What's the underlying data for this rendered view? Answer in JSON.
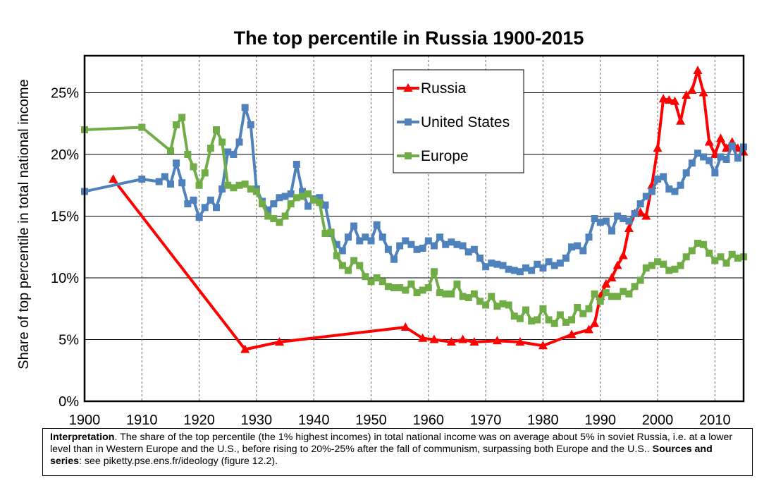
{
  "chart_data": {
    "type": "line",
    "title": "The top percentile in Russia 1900-2015",
    "ylabel": "Share of top percentile in total national income",
    "xlabel": "",
    "xlim": [
      1900,
      2015
    ],
    "ylim": [
      0,
      0.28
    ],
    "grid": true,
    "legend_position": "top-center",
    "x_ticks": [
      "1900",
      "1910",
      "1920",
      "1930",
      "1940",
      "1950",
      "1960",
      "1970",
      "1980",
      "1990",
      "2000",
      "2010"
    ],
    "y_ticks": [
      "0%",
      "5%",
      "10%",
      "15%",
      "20%",
      "25%"
    ],
    "series": [
      {
        "name": "Russia",
        "color": "#ff0000",
        "marker": "triangle",
        "points": [
          [
            1905,
            0.18
          ],
          [
            1928,
            0.042
          ],
          [
            1934,
            0.048
          ],
          [
            1956,
            0.06
          ],
          [
            1959,
            0.051
          ],
          [
            1961,
            0.05
          ],
          [
            1964,
            0.048
          ],
          [
            1966,
            0.05
          ],
          [
            1968,
            0.048
          ],
          [
            1972,
            0.049
          ],
          [
            1976,
            0.048
          ],
          [
            1980,
            0.045
          ],
          [
            1985,
            0.054
          ],
          [
            1988,
            0.058
          ],
          [
            1989,
            0.063
          ],
          [
            1990,
            0.085
          ],
          [
            1991,
            0.095
          ],
          [
            1992,
            0.1
          ],
          [
            1993,
            0.11
          ],
          [
            1994,
            0.118
          ],
          [
            1995,
            0.14
          ],
          [
            1996,
            0.152
          ],
          [
            1997,
            0.153
          ],
          [
            1998,
            0.15
          ],
          [
            1999,
            0.175
          ],
          [
            2000,
            0.205
          ],
          [
            2001,
            0.245
          ],
          [
            2002,
            0.244
          ],
          [
            2003,
            0.243
          ],
          [
            2004,
            0.227
          ],
          [
            2005,
            0.248
          ],
          [
            2006,
            0.252
          ],
          [
            2007,
            0.268
          ],
          [
            2008,
            0.25
          ],
          [
            2009,
            0.21
          ],
          [
            2010,
            0.2
          ],
          [
            2011,
            0.213
          ],
          [
            2012,
            0.205
          ],
          [
            2013,
            0.21
          ],
          [
            2014,
            0.205
          ],
          [
            2015,
            0.202
          ]
        ]
      },
      {
        "name": "United States",
        "color": "#4f81bd",
        "marker": "square",
        "points": [
          [
            1900,
            0.17
          ],
          [
            1910,
            0.18
          ],
          [
            1913,
            0.178
          ],
          [
            1914,
            0.182
          ],
          [
            1915,
            0.176
          ],
          [
            1916,
            0.193
          ],
          [
            1917,
            0.177
          ],
          [
            1918,
            0.16
          ],
          [
            1919,
            0.163
          ],
          [
            1920,
            0.149
          ],
          [
            1921,
            0.157
          ],
          [
            1922,
            0.163
          ],
          [
            1923,
            0.157
          ],
          [
            1924,
            0.172
          ],
          [
            1925,
            0.202
          ],
          [
            1926,
            0.2
          ],
          [
            1927,
            0.21
          ],
          [
            1928,
            0.238
          ],
          [
            1929,
            0.224
          ],
          [
            1930,
            0.172
          ],
          [
            1931,
            0.162
          ],
          [
            1932,
            0.155
          ],
          [
            1933,
            0.16
          ],
          [
            1934,
            0.165
          ],
          [
            1935,
            0.166
          ],
          [
            1936,
            0.168
          ],
          [
            1937,
            0.192
          ],
          [
            1938,
            0.17
          ],
          [
            1939,
            0.158
          ],
          [
            1940,
            0.164
          ],
          [
            1941,
            0.165
          ],
          [
            1942,
            0.159
          ],
          [
            1943,
            0.136
          ],
          [
            1944,
            0.127
          ],
          [
            1945,
            0.122
          ],
          [
            1946,
            0.133
          ],
          [
            1947,
            0.142
          ],
          [
            1948,
            0.13
          ],
          [
            1949,
            0.133
          ],
          [
            1950,
            0.13
          ],
          [
            1951,
            0.143
          ],
          [
            1952,
            0.133
          ],
          [
            1953,
            0.123
          ],
          [
            1954,
            0.115
          ],
          [
            1955,
            0.126
          ],
          [
            1956,
            0.13
          ],
          [
            1957,
            0.127
          ],
          [
            1958,
            0.123
          ],
          [
            1959,
            0.124
          ],
          [
            1960,
            0.13
          ],
          [
            1961,
            0.126
          ],
          [
            1962,
            0.133
          ],
          [
            1963,
            0.127
          ],
          [
            1964,
            0.129
          ],
          [
            1965,
            0.127
          ],
          [
            1966,
            0.126
          ],
          [
            1967,
            0.121
          ],
          [
            1968,
            0.123
          ],
          [
            1969,
            0.116
          ],
          [
            1970,
            0.109
          ],
          [
            1971,
            0.112
          ],
          [
            1972,
            0.111
          ],
          [
            1973,
            0.11
          ],
          [
            1974,
            0.107
          ],
          [
            1975,
            0.106
          ],
          [
            1976,
            0.105
          ],
          [
            1977,
            0.108
          ],
          [
            1978,
            0.106
          ],
          [
            1979,
            0.111
          ],
          [
            1980,
            0.108
          ],
          [
            1981,
            0.113
          ],
          [
            1982,
            0.11
          ],
          [
            1983,
            0.112
          ],
          [
            1984,
            0.116
          ],
          [
            1985,
            0.125
          ],
          [
            1986,
            0.126
          ],
          [
            1987,
            0.122
          ],
          [
            1988,
            0.133
          ],
          [
            1989,
            0.148
          ],
          [
            1990,
            0.145
          ],
          [
            1991,
            0.146
          ],
          [
            1992,
            0.138
          ],
          [
            1993,
            0.15
          ],
          [
            1994,
            0.148
          ],
          [
            1995,
            0.146
          ],
          [
            1996,
            0.152
          ],
          [
            1997,
            0.16
          ],
          [
            1998,
            0.166
          ],
          [
            1999,
            0.17
          ],
          [
            2000,
            0.18
          ],
          [
            2001,
            0.182
          ],
          [
            2002,
            0.172
          ],
          [
            2003,
            0.17
          ],
          [
            2004,
            0.175
          ],
          [
            2005,
            0.185
          ],
          [
            2006,
            0.193
          ],
          [
            2007,
            0.201
          ],
          [
            2008,
            0.198
          ],
          [
            2009,
            0.195
          ],
          [
            2010,
            0.185
          ],
          [
            2011,
            0.198
          ],
          [
            2012,
            0.196
          ],
          [
            2013,
            0.207
          ],
          [
            2014,
            0.197
          ],
          [
            2015,
            0.206
          ]
        ]
      },
      {
        "name": "Europe",
        "color": "#70ad47",
        "marker": "square",
        "points": [
          [
            1900,
            0.22
          ],
          [
            1910,
            0.222
          ],
          [
            1915,
            0.203
          ],
          [
            1916,
            0.224
          ],
          [
            1917,
            0.23
          ],
          [
            1918,
            0.2
          ],
          [
            1919,
            0.19
          ],
          [
            1920,
            0.175
          ],
          [
            1921,
            0.185
          ],
          [
            1922,
            0.205
          ],
          [
            1923,
            0.22
          ],
          [
            1924,
            0.21
          ],
          [
            1925,
            0.175
          ],
          [
            1926,
            0.173
          ],
          [
            1927,
            0.175
          ],
          [
            1928,
            0.176
          ],
          [
            1929,
            0.172
          ],
          [
            1930,
            0.17
          ],
          [
            1931,
            0.16
          ],
          [
            1932,
            0.15
          ],
          [
            1933,
            0.148
          ],
          [
            1934,
            0.145
          ],
          [
            1935,
            0.15
          ],
          [
            1936,
            0.16
          ],
          [
            1937,
            0.165
          ],
          [
            1938,
            0.166
          ],
          [
            1939,
            0.168
          ],
          [
            1940,
            0.163
          ],
          [
            1941,
            0.161
          ],
          [
            1942,
            0.136
          ],
          [
            1943,
            0.137
          ],
          [
            1944,
            0.118
          ],
          [
            1945,
            0.11
          ],
          [
            1946,
            0.106
          ],
          [
            1947,
            0.114
          ],
          [
            1948,
            0.11
          ],
          [
            1949,
            0.101
          ],
          [
            1950,
            0.097
          ],
          [
            1951,
            0.1
          ],
          [
            1952,
            0.097
          ],
          [
            1953,
            0.093
          ],
          [
            1954,
            0.092
          ],
          [
            1955,
            0.092
          ],
          [
            1956,
            0.09
          ],
          [
            1957,
            0.095
          ],
          [
            1958,
            0.088
          ],
          [
            1959,
            0.09
          ],
          [
            1960,
            0.092
          ],
          [
            1961,
            0.105
          ],
          [
            1962,
            0.088
          ],
          [
            1963,
            0.087
          ],
          [
            1964,
            0.087
          ],
          [
            1965,
            0.095
          ],
          [
            1966,
            0.085
          ],
          [
            1967,
            0.084
          ],
          [
            1968,
            0.087
          ],
          [
            1969,
            0.081
          ],
          [
            1970,
            0.078
          ],
          [
            1971,
            0.085
          ],
          [
            1972,
            0.077
          ],
          [
            1973,
            0.079
          ],
          [
            1974,
            0.078
          ],
          [
            1975,
            0.069
          ],
          [
            1976,
            0.067
          ],
          [
            1977,
            0.074
          ],
          [
            1978,
            0.065
          ],
          [
            1979,
            0.066
          ],
          [
            1980,
            0.075
          ],
          [
            1981,
            0.066
          ],
          [
            1982,
            0.063
          ],
          [
            1983,
            0.07
          ],
          [
            1984,
            0.064
          ],
          [
            1985,
            0.066
          ],
          [
            1986,
            0.076
          ],
          [
            1987,
            0.071
          ],
          [
            1988,
            0.075
          ],
          [
            1989,
            0.087
          ],
          [
            1990,
            0.081
          ],
          [
            1991,
            0.088
          ],
          [
            1992,
            0.085
          ],
          [
            1993,
            0.085
          ],
          [
            1994,
            0.089
          ],
          [
            1995,
            0.087
          ],
          [
            1996,
            0.093
          ],
          [
            1997,
            0.098
          ],
          [
            1998,
            0.108
          ],
          [
            1999,
            0.11
          ],
          [
            2000,
            0.113
          ],
          [
            2001,
            0.111
          ],
          [
            2002,
            0.106
          ],
          [
            2003,
            0.107
          ],
          [
            2004,
            0.11
          ],
          [
            2005,
            0.117
          ],
          [
            2006,
            0.122
          ],
          [
            2007,
            0.128
          ],
          [
            2008,
            0.127
          ],
          [
            2009,
            0.12
          ],
          [
            2010,
            0.114
          ],
          [
            2011,
            0.117
          ],
          [
            2012,
            0.112
          ],
          [
            2013,
            0.119
          ],
          [
            2014,
            0.116
          ],
          [
            2015,
            0.117
          ]
        ]
      }
    ]
  },
  "note": {
    "interpretation_label": "Interpretation",
    "interpretation_text": ". The share of the top percentile (the 1% highest incomes) in total national income was on average about 5% in soviet Russia, i.e. at a lower level than in Western Europe and the U.S., before rising to 20%-25% after the fall of communism, surpassing both Europe and the U.S.. ",
    "sources_label": "Sources and series",
    "sources_text": ": see piketty.pse.ens.fr/ideology (figure 12.2)."
  }
}
